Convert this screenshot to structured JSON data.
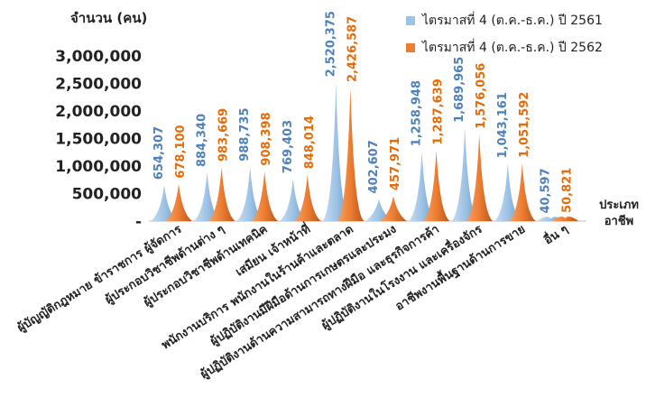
{
  "chart_data": {
    "type": "area",
    "ylabel": "จำนวน (คน)",
    "xlabel": "ประเภท อาชีพ",
    "ylim": [
      0,
      3000000
    ],
    "yticks": [
      "3,000,000",
      "2,500,000",
      "2,000,000",
      "1,500,000",
      "1,000,000",
      "500,000",
      "-"
    ],
    "categories": [
      "ผู้บัญญัติกฎหมาย ข้าราชการ ผู้จัดการ",
      "ผู้ประกอบวิชาชีพด้านต่าง ๆ",
      "ผู้ประกอบวิชาชีพด้านเทคนิค",
      "เสมียน เจ้าหน้าที่",
      "พนักงานบริการ พนักงานในร้านค้าและตลาด",
      "ผู้ปฏิบัติงานมีฝีมือด้านการเกษตรและประมง",
      "ผู้ปฏิบัติงานด้านความสามารถทางฝีมือ และธุรกิจการค้า",
      "ผู้ปฏิบัติงานในโรงงาน และเครื่องจักร",
      "อาชีพงานพื้นฐานด้านการขาย",
      "อื่น ๆ"
    ],
    "series": [
      {
        "name": "ไตรมาสที่ 4 (ต.ค.-ธ.ค.) ปี 2561",
        "color": "#9dc3e6",
        "values": [
          654307,
          884340,
          988735,
          769403,
          2520375,
          402607,
          1258948,
          1689965,
          1043161,
          40597
        ],
        "labels": [
          "654,307",
          "884,340",
          "988,735",
          "769,403",
          "2,520,375",
          "402,607",
          "1,258,948",
          "1,689,965",
          "1,043,161",
          "40,597"
        ]
      },
      {
        "name": "ไตรมาสที่ 4 (ต.ค.-ธ.ค.) ปี 2562",
        "color": "#ed7d31",
        "values": [
          678100,
          983669,
          908398,
          848014,
          2426587,
          457971,
          1287639,
          1576056,
          1051592,
          50821
        ],
        "labels": [
          "678,100",
          "983,669",
          "908,398",
          "848,014",
          "2,426,587",
          "457,971",
          "1,287,639",
          "1,576,056",
          "1,051,592",
          "50,821"
        ]
      }
    ],
    "legend": "top-right"
  }
}
